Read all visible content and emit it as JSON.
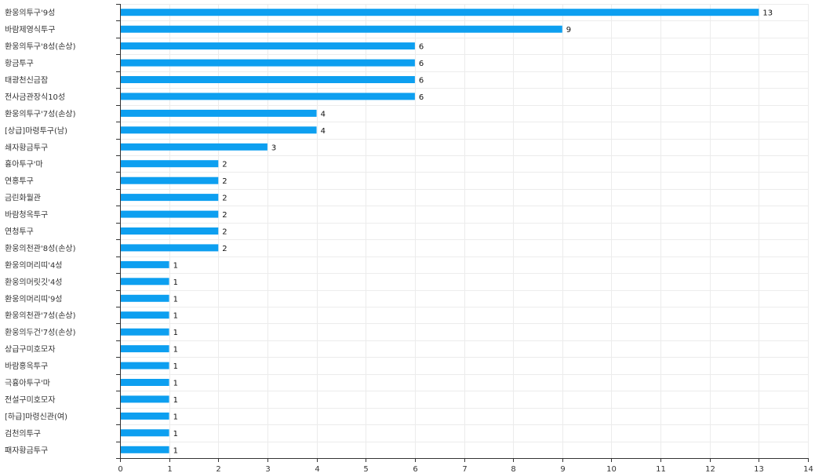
{
  "chart_data": {
    "type": "bar",
    "orientation": "horizontal",
    "categories": [
      "환웅의투구'9성",
      "바람제영식투구",
      "환웅의투구'8성(손상)",
      "황금투구",
      "태광천신금잠",
      "전사금관장식10성",
      "환웅의투구'7성(손상)",
      "[상급]마령투구(남)",
      "쇄자황금투구",
      "흉아투구'마",
      "연홍투구",
      "금린화월관",
      "바람청옥투구",
      "연청투구",
      "환웅의천관'8성(손상)",
      "환웅의머리띠'4성",
      "환웅의머릿깃'4성",
      "환웅의머리띠'9성",
      "환웅의천관'7성(손상)",
      "환웅의두건'7성(손상)",
      "상급구미호모자",
      "바람홍옥투구",
      "극흉아투구'마",
      "전설구미호모자",
      "[하급]마령신관(여)",
      "검천의투구",
      "패자황금투구"
    ],
    "values": [
      13,
      9,
      6,
      6,
      6,
      6,
      4,
      4,
      3,
      2,
      2,
      2,
      2,
      2,
      2,
      1,
      1,
      1,
      1,
      1,
      1,
      1,
      1,
      1,
      1,
      1,
      1
    ],
    "xlim": [
      0,
      14
    ],
    "x_ticks": [
      "0",
      "1",
      "2",
      "3",
      "4",
      "5",
      "6",
      "7",
      "8",
      "9",
      "10",
      "11",
      "12",
      "13",
      "14"
    ],
    "title": "",
    "xlabel": "",
    "ylabel": "",
    "grid": true,
    "data_labels": true,
    "bar_color": "#0d9ff0"
  }
}
